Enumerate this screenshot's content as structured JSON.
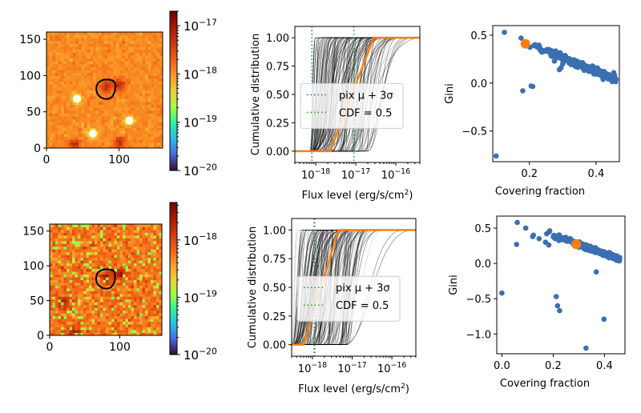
{
  "chart_data": [
    {
      "panel": "image-top",
      "type": "heatmap",
      "xticks": [
        "0",
        "100"
      ],
      "yticks": [
        "0",
        "50",
        "100",
        "150"
      ],
      "xlim": [
        0,
        160
      ],
      "ylim": [
        0,
        160
      ],
      "colorbar": {
        "scale": "log",
        "range": [
          1e-20,
          2e-17
        ],
        "ticks": [
          "10^-20",
          "10^-19",
          "10^-18",
          "10^-17"
        ],
        "colormap": "turbo"
      },
      "contour_center": [
        82,
        80
      ],
      "sources": [
        [
          82,
          85,
          "dark"
        ],
        [
          100,
          88,
          "dark"
        ],
        [
          42,
          68,
          "bright"
        ],
        [
          114,
          38,
          "bright"
        ],
        [
          64,
          20,
          "bright"
        ],
        [
          38,
          5,
          "dark"
        ],
        [
          100,
          8,
          "dark"
        ]
      ]
    },
    {
      "panel": "cdf-top",
      "type": "line",
      "xlabel": "Flux level (erg/s/cm²)",
      "ylabel": "Cumulative distribution",
      "xscale": "log",
      "xlim": [
        3e-19,
        4e-16
      ],
      "ylim": [
        -0.1,
        1.1
      ],
      "xticks": [
        "10^-18",
        "10^-17",
        "10^-16"
      ],
      "yticks": [
        "0.00",
        "0.25",
        "0.50",
        "0.75",
        "1.00"
      ],
      "legend": {
        "position": "center",
        "entries": [
          {
            "label": "pix μ + 3σ",
            "color": "#1f77b4",
            "style": "dotted"
          },
          {
            "label": "CDF  = 0.5",
            "color": "#2ca02c",
            "style": "dotted"
          }
        ]
      },
      "vlines": [
        {
          "name": "pix-mu-3sigma",
          "x": 8e-19,
          "color": "#1f77b4"
        },
        {
          "name": "cdf-half",
          "x": 9e-18,
          "color": "#2ca02c"
        }
      ],
      "highlight": {
        "color": "#ff7f0e",
        "x0": 2.3e-18,
        "x1": 2.8e-17
      },
      "bundle": {
        "x0min": 7e-19,
        "x0max": 2e-17,
        "width_dex": [
          0.1,
          1.6
        ]
      }
    },
    {
      "panel": "scatter-top",
      "type": "scatter",
      "xlabel": "Covering fraction",
      "ylabel": "Gini",
      "xlim": [
        0.09,
        0.47
      ],
      "ylim": [
        -0.82,
        0.6
      ],
      "xticks": [
        0.2,
        0.4
      ],
      "yticks": [
        -0.5,
        0.0,
        0.5
      ],
      "outliers": [
        [
          0.125,
          0.53
        ],
        [
          0.175,
          0.47
        ],
        [
          0.18,
          -0.08
        ],
        [
          0.205,
          -0.03
        ],
        [
          0.21,
          -0.035
        ],
        [
          0.1,
          -0.76
        ],
        [
          0.275,
          0.23
        ],
        [
          0.3,
          0.2
        ],
        [
          0.29,
          0.14
        ],
        [
          0.295,
          0.16
        ]
      ],
      "trend": {
        "x": [
          0.18,
          0.46
        ],
        "y": [
          0.43,
          0.04
        ],
        "n": 240
      },
      "highlight": {
        "x": 0.188,
        "y": 0.41,
        "color": "#ff7f0e"
      }
    },
    {
      "panel": "image-bottom",
      "type": "heatmap",
      "xticks": [
        "0",
        "100"
      ],
      "yticks": [
        "0",
        "50",
        "100",
        "150"
      ],
      "xlim": [
        0,
        160
      ],
      "ylim": [
        0,
        160
      ],
      "colorbar": {
        "scale": "log",
        "range": [
          1e-20,
          4.5e-18
        ],
        "ticks": [
          "10^-20",
          "10^-19",
          "10^-18"
        ],
        "colormap": "turbo"
      },
      "contour_center": [
        80,
        80
      ],
      "sources": [
        [
          80,
          85,
          "dark"
        ],
        [
          100,
          90,
          "dark"
        ],
        [
          20,
          48,
          "dark"
        ],
        [
          36,
          5,
          "dark"
        ]
      ]
    },
    {
      "panel": "cdf-bottom",
      "type": "line",
      "xlabel": "Flux level (erg/s/cm²)",
      "ylabel": "Cumulative distribution",
      "xscale": "log",
      "xlim": [
        3e-19,
        4e-16
      ],
      "ylim": [
        -0.1,
        1.1
      ],
      "xticks": [
        "10^-18",
        "10^-17",
        "10^-16"
      ],
      "yticks": [
        "0.00",
        "0.25",
        "0.50",
        "0.75",
        "1.00"
      ],
      "legend": {
        "position": "center",
        "entries": [
          {
            "label": "pix μ + 3σ",
            "color": "#1f77b4",
            "style": "dotted"
          },
          {
            "label": "CDF  = 0.5",
            "color": "#2ca02c",
            "style": "dotted"
          }
        ]
      },
      "vlines": [
        {
          "name": "pix-mu-3sigma",
          "x": 1.1e-18,
          "color": "#1f77b4"
        },
        {
          "name": "cdf-half",
          "x": 1.15e-18,
          "color": "#2ca02c"
        }
      ],
      "highlight": {
        "color": "#ff7f0e",
        "x0": 6e-19,
        "x1": 4.5e-18
      },
      "bundle": {
        "x0min": 3e-19,
        "x0max": 8e-18,
        "width_dex": [
          0.1,
          1.5
        ]
      }
    },
    {
      "panel": "scatter-bottom",
      "type": "scatter",
      "xlabel": "Covering fraction",
      "ylabel": "Gini",
      "xlim": [
        -0.02,
        0.48
      ],
      "ylim": [
        -1.28,
        0.67
      ],
      "xticks": [
        0.0,
        0.2,
        0.4
      ],
      "yticks": [
        -1.0,
        -0.5,
        0.0,
        0.5
      ],
      "outliers": [
        [
          0.06,
          0.58
        ],
        [
          0.057,
          0.27
        ],
        [
          0.093,
          0.5
        ],
        [
          0.12,
          0.38
        ],
        [
          0.123,
          0.4
        ],
        [
          0.145,
          0.35
        ],
        [
          0.17,
          0.3
        ],
        [
          0.183,
          0.26
        ],
        [
          0.0,
          -0.42
        ],
        [
          0.212,
          -0.47
        ],
        [
          0.217,
          -0.6
        ],
        [
          0.225,
          -0.67
        ],
        [
          0.368,
          -0.12
        ],
        [
          0.398,
          -0.79
        ],
        [
          0.328,
          -1.2
        ]
      ],
      "trend": {
        "x": [
          0.17,
          0.46
        ],
        "y": [
          0.44,
          0.06
        ],
        "n": 260
      },
      "highlight": {
        "x": 0.29,
        "y": 0.27,
        "color": "#ff7f0e"
      }
    }
  ]
}
